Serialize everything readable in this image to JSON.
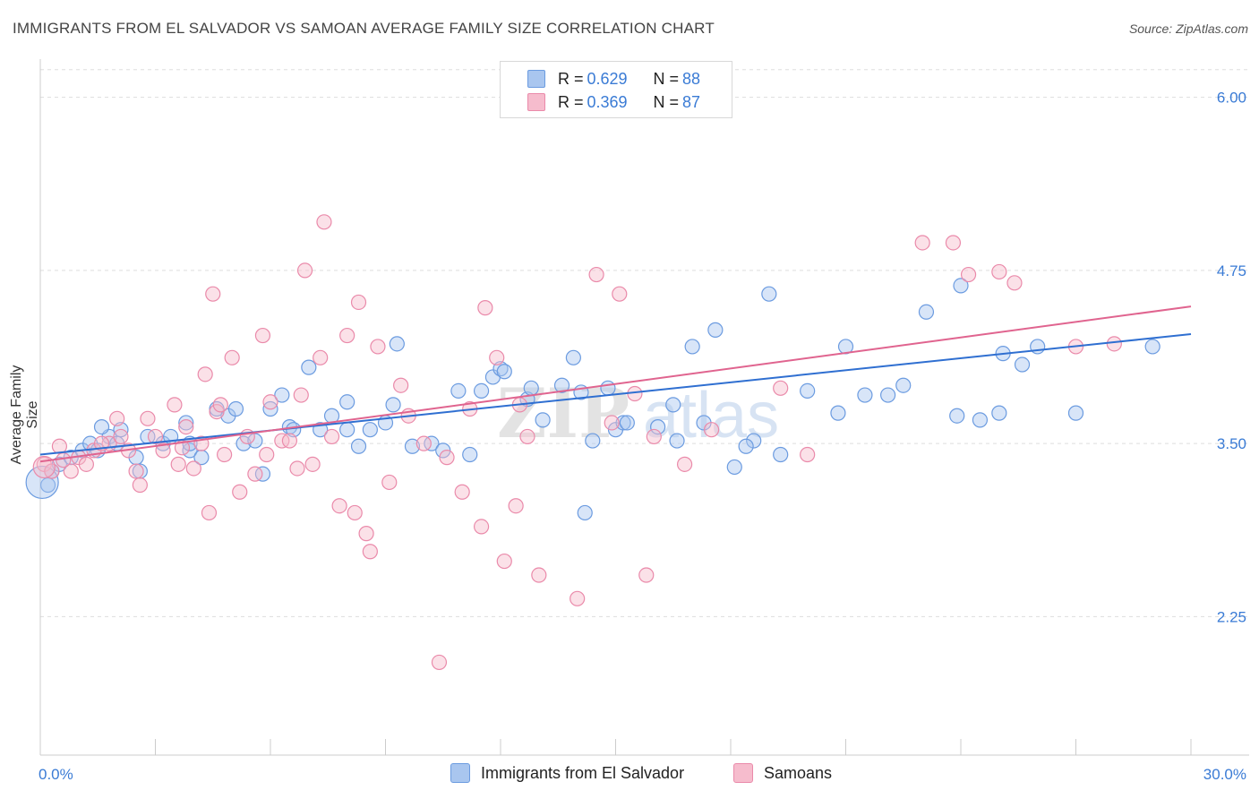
{
  "title": "IMMIGRANTS FROM EL SALVADOR VS SAMOAN AVERAGE FAMILY SIZE CORRELATION CHART",
  "source": "Source: ZipAtlas.com",
  "legend": {
    "series1": {
      "r_label": "R = ",
      "r_value": "0.629",
      "n_label": "N = ",
      "n_value": "88"
    },
    "series2": {
      "r_label": "R = ",
      "r_value": "0.369",
      "n_label": "N = ",
      "n_value": "87"
    }
  },
  "bottom_legend": [
    "Immigrants from El Salvador",
    "Samoans"
  ],
  "colors": {
    "blue": "#6b9be0",
    "blue_fill": "#a9c6ef",
    "blue_line": "#2f6fd1",
    "pink": "#ea8aaa",
    "pink_fill": "#f6bccd",
    "pink_line": "#e0648f",
    "axis_text": "#3a7bd5"
  },
  "chart_data": {
    "type": "scatter",
    "title": "IMMIGRANTS FROM EL SALVADOR VS SAMOAN AVERAGE FAMILY SIZE CORRELATION CHART",
    "xlabel": "",
    "ylabel": "Average Family Size",
    "xlim": [
      0,
      30
    ],
    "ylim": [
      1.25,
      6.25
    ],
    "x_tick_labels": [
      "0.0%",
      "30.0%"
    ],
    "y_ticks": [
      2.25,
      3.5,
      4.75,
      6.0
    ],
    "y_tick_labels": [
      "2.25",
      "3.50",
      "4.75",
      "6.00"
    ],
    "grid": "horizontal dashed",
    "legend_position": "top-center",
    "series": [
      {
        "name": "Immigrants from El Salvador",
        "trend": [
          [
            0,
            3.42
          ],
          [
            30,
            4.29
          ]
        ],
        "points": [
          [
            0.3,
            3.3
          ],
          [
            0.5,
            3.35
          ],
          [
            0.8,
            3.4
          ],
          [
            1.1,
            3.45
          ],
          [
            1.3,
            3.5
          ],
          [
            1.5,
            3.45
          ],
          [
            1.8,
            3.55
          ],
          [
            2.0,
            3.5
          ],
          [
            2.5,
            3.4
          ],
          [
            2.8,
            3.55
          ],
          [
            3.2,
            3.5
          ],
          [
            3.8,
            3.65
          ],
          [
            3.9,
            3.45
          ],
          [
            4.2,
            3.4
          ],
          [
            4.6,
            3.75
          ],
          [
            4.9,
            3.7
          ],
          [
            5.1,
            3.75
          ],
          [
            5.3,
            3.5
          ],
          [
            5.6,
            3.52
          ],
          [
            5.8,
            3.28
          ],
          [
            6.0,
            3.75
          ],
          [
            6.3,
            3.85
          ],
          [
            6.5,
            3.62
          ],
          [
            7.3,
            3.6
          ],
          [
            7.6,
            3.7
          ],
          [
            7.0,
            4.05
          ],
          [
            8.0,
            3.6
          ],
          [
            8.3,
            3.48
          ],
          [
            8.6,
            3.6
          ],
          [
            9.0,
            3.65
          ],
          [
            9.2,
            3.78
          ],
          [
            9.7,
            3.48
          ],
          [
            10.2,
            3.5
          ],
          [
            10.5,
            3.45
          ],
          [
            10.9,
            3.88
          ],
          [
            11.2,
            3.42
          ],
          [
            11.5,
            3.88
          ],
          [
            11.8,
            3.98
          ],
          [
            12.0,
            4.04
          ],
          [
            12.7,
            3.82
          ],
          [
            13.1,
            3.67
          ],
          [
            13.6,
            3.92
          ],
          [
            14.1,
            3.87
          ],
          [
            14.4,
            3.52
          ],
          [
            14.8,
            3.9
          ],
          [
            15.0,
            3.6
          ],
          [
            15.2,
            3.65
          ],
          [
            15.3,
            3.65
          ],
          [
            16.1,
            3.62
          ],
          [
            16.6,
            3.52
          ],
          [
            17.3,
            3.65
          ],
          [
            17.6,
            4.32
          ],
          [
            18.1,
            3.33
          ],
          [
            18.6,
            3.52
          ],
          [
            19.0,
            4.58
          ],
          [
            19.3,
            3.42
          ],
          [
            20.0,
            3.88
          ],
          [
            20.8,
            3.72
          ],
          [
            21.5,
            3.85
          ],
          [
            22.5,
            3.92
          ],
          [
            23.1,
            4.45
          ],
          [
            24.0,
            4.64
          ],
          [
            24.5,
            3.67
          ],
          [
            25.1,
            4.15
          ],
          [
            25.6,
            4.07
          ],
          [
            29.0,
            4.2
          ],
          [
            1.6,
            3.62
          ],
          [
            0.2,
            3.2
          ],
          [
            2.1,
            3.6
          ],
          [
            3.4,
            3.55
          ],
          [
            12.1,
            4.02
          ],
          [
            13.9,
            4.12
          ],
          [
            16.5,
            3.78
          ],
          [
            18.4,
            3.48
          ],
          [
            21.0,
            4.2
          ],
          [
            22.1,
            3.85
          ],
          [
            25.0,
            3.72
          ],
          [
            27.0,
            3.72
          ],
          [
            23.9,
            3.7
          ],
          [
            9.3,
            4.22
          ],
          [
            12.8,
            3.9
          ],
          [
            14.2,
            3.0
          ],
          [
            8.0,
            3.8
          ],
          [
            2.6,
            3.3
          ],
          [
            3.9,
            3.5
          ],
          [
            6.6,
            3.6
          ],
          [
            17.0,
            4.2
          ],
          [
            26.0,
            4.2
          ]
        ]
      },
      {
        "name": "Samoans",
        "trend": [
          [
            0,
            3.37
          ],
          [
            30,
            4.49
          ]
        ],
        "points": [
          [
            0.1,
            3.35
          ],
          [
            0.3,
            3.3
          ],
          [
            0.5,
            3.48
          ],
          [
            0.8,
            3.3
          ],
          [
            1.0,
            3.4
          ],
          [
            1.2,
            3.35
          ],
          [
            1.4,
            3.45
          ],
          [
            1.8,
            3.5
          ],
          [
            2.0,
            3.68
          ],
          [
            2.1,
            3.55
          ],
          [
            2.3,
            3.45
          ],
          [
            2.5,
            3.3
          ],
          [
            2.8,
            3.68
          ],
          [
            3.0,
            3.55
          ],
          [
            3.2,
            3.45
          ],
          [
            3.5,
            3.78
          ],
          [
            3.7,
            3.47
          ],
          [
            3.8,
            3.62
          ],
          [
            4.0,
            3.32
          ],
          [
            4.2,
            3.5
          ],
          [
            4.3,
            4.0
          ],
          [
            4.4,
            3.0
          ],
          [
            4.5,
            4.58
          ],
          [
            4.6,
            3.73
          ],
          [
            4.8,
            3.42
          ],
          [
            5.0,
            4.12
          ],
          [
            5.2,
            3.15
          ],
          [
            5.4,
            3.55
          ],
          [
            5.6,
            3.28
          ],
          [
            5.8,
            4.28
          ],
          [
            6.0,
            3.8
          ],
          [
            6.3,
            3.52
          ],
          [
            6.5,
            3.52
          ],
          [
            6.8,
            3.85
          ],
          [
            6.9,
            4.75
          ],
          [
            7.1,
            3.35
          ],
          [
            7.3,
            4.12
          ],
          [
            7.4,
            5.1
          ],
          [
            7.6,
            3.55
          ],
          [
            7.8,
            3.05
          ],
          [
            8.0,
            4.28
          ],
          [
            8.2,
            3.0
          ],
          [
            8.3,
            4.52
          ],
          [
            8.5,
            2.85
          ],
          [
            8.6,
            2.72
          ],
          [
            8.8,
            4.2
          ],
          [
            9.1,
            3.22
          ],
          [
            9.6,
            3.7
          ],
          [
            10.0,
            3.5
          ],
          [
            10.4,
            1.92
          ],
          [
            10.6,
            3.4
          ],
          [
            11.0,
            3.15
          ],
          [
            11.2,
            3.75
          ],
          [
            11.5,
            2.9
          ],
          [
            11.6,
            4.48
          ],
          [
            11.9,
            4.12
          ],
          [
            12.1,
            2.65
          ],
          [
            12.4,
            3.05
          ],
          [
            12.7,
            3.55
          ],
          [
            13.0,
            2.55
          ],
          [
            14.0,
            2.38
          ],
          [
            14.5,
            4.72
          ],
          [
            14.9,
            3.65
          ],
          [
            15.1,
            4.58
          ],
          [
            15.8,
            2.55
          ],
          [
            16.8,
            3.35
          ],
          [
            17.5,
            3.6
          ],
          [
            19.3,
            3.9
          ],
          [
            20.0,
            3.42
          ],
          [
            23.0,
            4.95
          ],
          [
            23.8,
            4.95
          ],
          [
            24.2,
            4.72
          ],
          [
            25.0,
            4.74
          ],
          [
            25.4,
            4.66
          ],
          [
            27.0,
            4.2
          ],
          [
            0.6,
            3.38
          ],
          [
            1.6,
            3.5
          ],
          [
            2.6,
            3.2
          ],
          [
            3.6,
            3.35
          ],
          [
            4.7,
            3.78
          ],
          [
            5.9,
            3.42
          ],
          [
            6.7,
            3.32
          ],
          [
            9.4,
            3.92
          ],
          [
            12.5,
            3.78
          ],
          [
            15.5,
            3.86
          ],
          [
            16.0,
            3.55
          ],
          [
            28.0,
            4.22
          ]
        ]
      }
    ]
  }
}
